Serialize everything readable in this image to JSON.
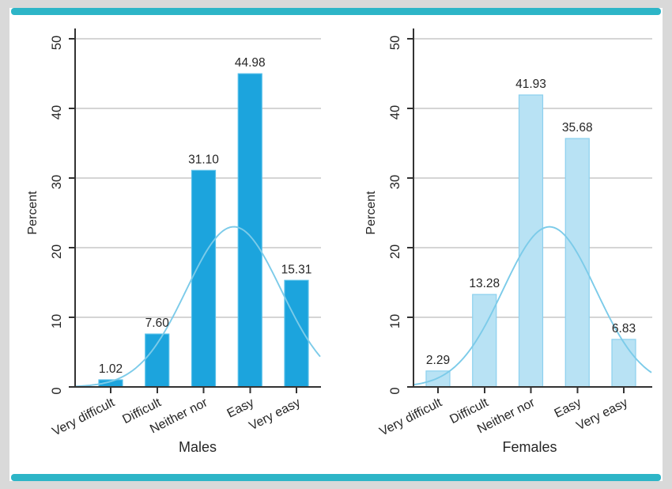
{
  "figure": {
    "background_color": "#d9d9d9",
    "card_color": "#ffffff",
    "accent_rule_color": "#2db5c7",
    "gridline_color": "#d5d5d5",
    "axis_color": "#333333",
    "text_color": "#262626"
  },
  "chart_data": [
    {
      "type": "bar",
      "title": "Males",
      "ylabel": "Percent",
      "categories": [
        "Very difficult",
        "Difficult",
        "Neither nor",
        "Easy",
        "Very easy"
      ],
      "values": [
        1.02,
        7.6,
        31.1,
        44.98,
        15.31
      ],
      "value_labels": [
        "1.02",
        "7.60",
        "31.10",
        "44.98",
        "15.31"
      ],
      "ylim": [
        0,
        50
      ],
      "yticks": [
        0,
        10,
        20,
        30,
        40,
        50
      ],
      "ytick_labels": [
        "0",
        "10",
        "20",
        "30",
        "40",
        "50"
      ],
      "grid": true,
      "legend": "none",
      "bar_fill": "#1ca4dd",
      "bar_border": "#56bfe9",
      "normal_curve": {
        "mean": 3.65,
        "sd": 1.02,
        "peak": 23,
        "color": "#7ccbe9"
      }
    },
    {
      "type": "bar",
      "title": "Females",
      "ylabel": "Percent",
      "categories": [
        "Very difficult",
        "Difficult",
        "Neither nor",
        "Easy",
        "Very easy"
      ],
      "values": [
        2.29,
        13.28,
        41.93,
        35.68,
        6.83
      ],
      "value_labels": [
        "2.29",
        "13.28",
        "41.93",
        "35.68",
        "6.83"
      ],
      "ylim": [
        0,
        50
      ],
      "yticks": [
        0,
        10,
        20,
        30,
        40,
        50
      ],
      "ytick_labels": [
        "0",
        "10",
        "20",
        "30",
        "40",
        "50"
      ],
      "grid": true,
      "legend": "none",
      "bar_fill": "#b8e2f4",
      "bar_border": "#8bd0ee",
      "normal_curve": {
        "mean": 3.4,
        "sd": 1.0,
        "peak": 23,
        "color": "#7ccbe9"
      }
    }
  ]
}
